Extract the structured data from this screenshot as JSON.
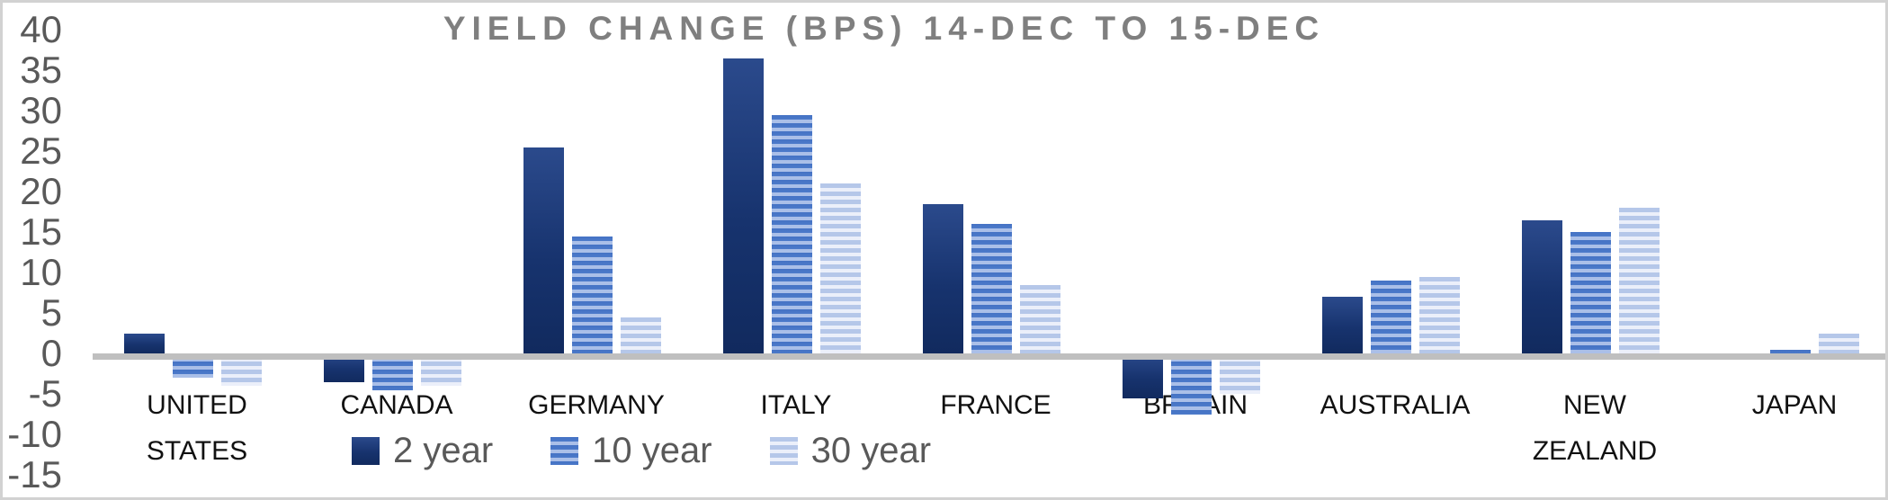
{
  "title": "YIELD CHANGE (BPS) 14-DEC TO 15-DEC",
  "chart_data": {
    "type": "bar",
    "title": "YIELD CHANGE (BPS) 14-DEC TO 15-DEC",
    "categories": [
      "UNITED STATES",
      "CANADA",
      "GERMANY",
      "ITALY",
      "FRANCE",
      "BRITAIN",
      "AUSTRALIA",
      "NEW ZEALAND",
      "JAPAN"
    ],
    "series": [
      {
        "name": "2 year",
        "values": [
          2.5,
          -3.5,
          25.5,
          36.5,
          18.5,
          -5.5,
          7.0,
          16.5,
          0.0
        ]
      },
      {
        "name": "10 year",
        "values": [
          -3.0,
          -4.5,
          14.5,
          29.5,
          16.0,
          -7.5,
          9.0,
          15.0,
          0.4
        ]
      },
      {
        "name": "30 year",
        "values": [
          -4.0,
          -4.0,
          4.5,
          21.0,
          8.5,
          -5.0,
          9.5,
          18.0,
          2.5
        ]
      }
    ],
    "ylabel": "",
    "xlabel": "",
    "ylim": [
      -15,
      40
    ],
    "ytick_step": 5,
    "yticks": [
      40,
      35,
      30,
      25,
      20,
      15,
      10,
      5,
      0,
      -5,
      -10,
      -15
    ],
    "grid": false,
    "legend_position": "bottom"
  },
  "colors": {
    "series_2_year": "#17336e",
    "series_10_year": "#4472c4",
    "series_30_year": "#b5c7e9",
    "axis_line": "#bfbfbf",
    "title_text": "#7f7f7f",
    "tick_text": "#595959",
    "category_text": "#111111",
    "frame_border": "#d2d2d2"
  }
}
